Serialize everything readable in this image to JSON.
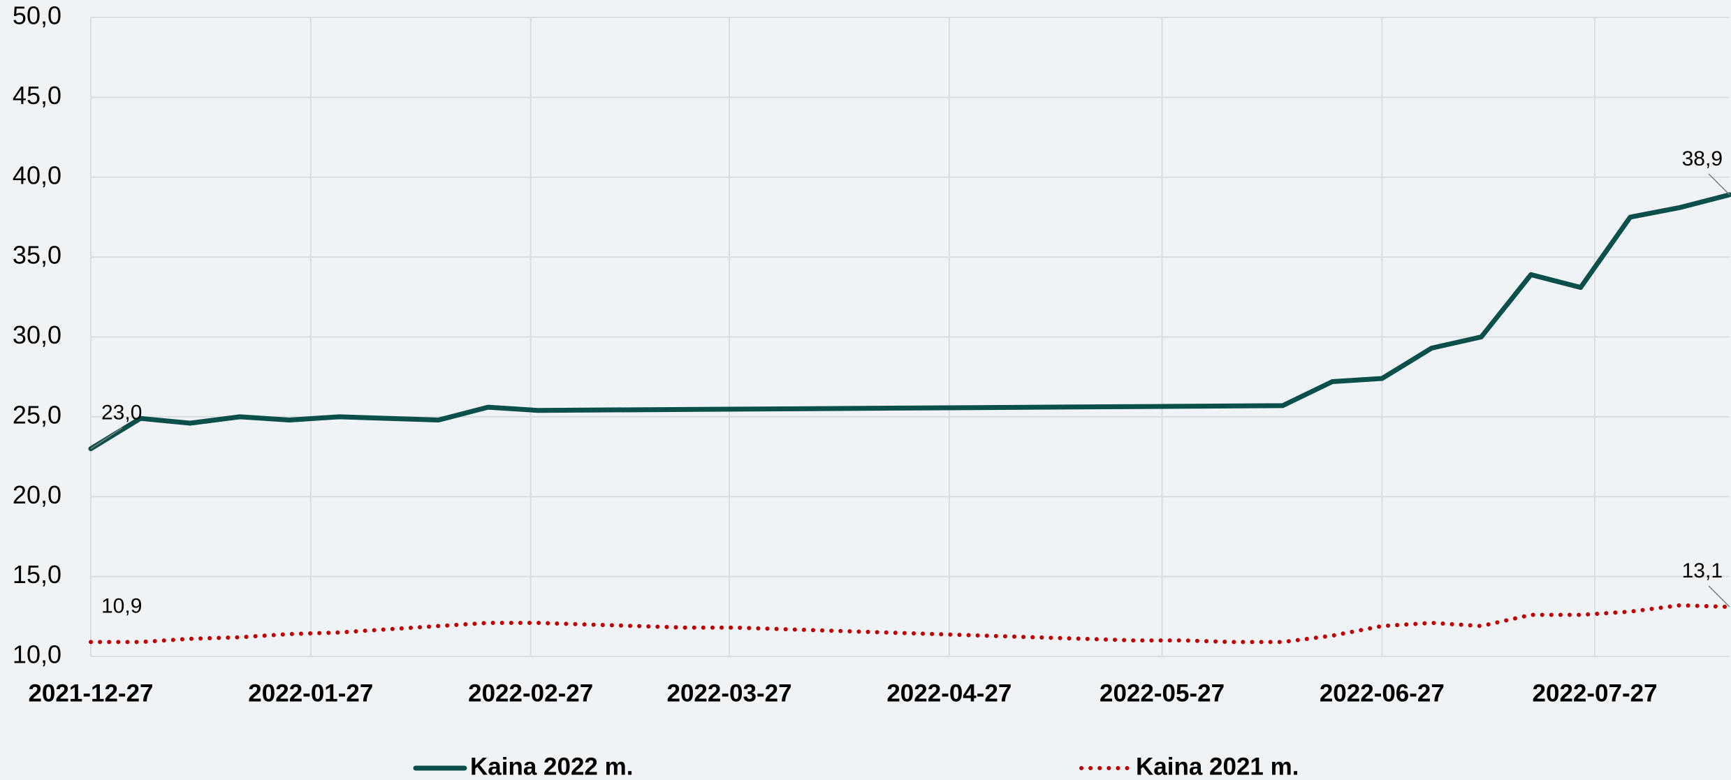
{
  "chart_data": {
    "type": "line",
    "xlim": [
      "2021-12-27",
      "2022-08-15"
    ],
    "xticks": [
      "2021-12-27",
      "2022-01-27",
      "2022-02-27",
      "2022-03-27",
      "2022-04-27",
      "2022-05-27",
      "2022-06-27",
      "2022-07-27"
    ],
    "ylim": [
      10,
      50
    ],
    "yticks": [
      {
        "value": 10,
        "label": "10,0"
      },
      {
        "value": 15,
        "label": "15,0"
      },
      {
        "value": 20,
        "label": "20,0"
      },
      {
        "value": 25,
        "label": "25,0"
      },
      {
        "value": 30,
        "label": "30,0"
      },
      {
        "value": 35,
        "label": "35,0"
      },
      {
        "value": 40,
        "label": "40,0"
      },
      {
        "value": 45,
        "label": "45,0"
      },
      {
        "value": 50,
        "label": "50,0"
      }
    ],
    "grid": true,
    "legend": "bottom",
    "series": [
      {
        "name": "Kaina 2022 m.",
        "color": "#0b4f4a",
        "style": "solid",
        "x": [
          "2021-12-27",
          "2022-01-03",
          "2022-01-10",
          "2022-01-17",
          "2022-01-24",
          "2022-01-31",
          "2022-02-14",
          "2022-02-21",
          "2022-02-28",
          "2022-06-13",
          "2022-06-20",
          "2022-06-27",
          "2022-07-04",
          "2022-07-11",
          "2022-07-18",
          "2022-07-25",
          "2022-08-01",
          "2022-08-08",
          "2022-08-15"
        ],
        "values": [
          23.0,
          24.9,
          24.6,
          25.0,
          24.8,
          25.0,
          24.8,
          25.6,
          25.4,
          25.7,
          27.2,
          27.4,
          29.3,
          30.0,
          33.9,
          33.1,
          37.5,
          38.1,
          38.9
        ],
        "value_labels": [
          "23,0",
          null,
          null,
          null,
          null,
          null,
          null,
          null,
          null,
          null,
          null,
          null,
          null,
          null,
          null,
          null,
          null,
          null,
          "38,9"
        ]
      },
      {
        "name": "Kaina 2021 m.",
        "color": "#c00000",
        "style": "dotted",
        "x": [
          "2021-12-27",
          "2022-01-03",
          "2022-01-10",
          "2022-01-17",
          "2022-01-24",
          "2022-01-31",
          "2022-02-07",
          "2022-02-14",
          "2022-02-21",
          "2022-02-28",
          "2022-03-07",
          "2022-03-14",
          "2022-03-21",
          "2022-03-28",
          "2022-04-04",
          "2022-04-11",
          "2022-04-18",
          "2022-04-25",
          "2022-05-02",
          "2022-05-09",
          "2022-05-16",
          "2022-05-23",
          "2022-05-30",
          "2022-06-06",
          "2022-06-13",
          "2022-06-20",
          "2022-06-27",
          "2022-07-04",
          "2022-07-11",
          "2022-07-18",
          "2022-07-25",
          "2022-08-01",
          "2022-08-08",
          "2022-08-15"
        ],
        "values": [
          10.9,
          10.9,
          11.1,
          11.2,
          11.4,
          11.5,
          11.7,
          11.9,
          12.1,
          12.1,
          12.0,
          11.9,
          11.8,
          11.8,
          11.7,
          11.6,
          11.5,
          11.4,
          11.3,
          11.2,
          11.1,
          11.0,
          11.0,
          10.9,
          10.9,
          11.3,
          11.9,
          12.1,
          11.9,
          12.6,
          12.6,
          12.8,
          13.2,
          13.1
        ],
        "value_labels": [
          "10,9",
          null,
          null,
          null,
          null,
          null,
          null,
          null,
          null,
          null,
          null,
          null,
          null,
          null,
          null,
          null,
          null,
          null,
          null,
          null,
          null,
          null,
          null,
          null,
          null,
          null,
          null,
          null,
          null,
          null,
          null,
          null,
          null,
          "13,1"
        ]
      }
    ]
  }
}
